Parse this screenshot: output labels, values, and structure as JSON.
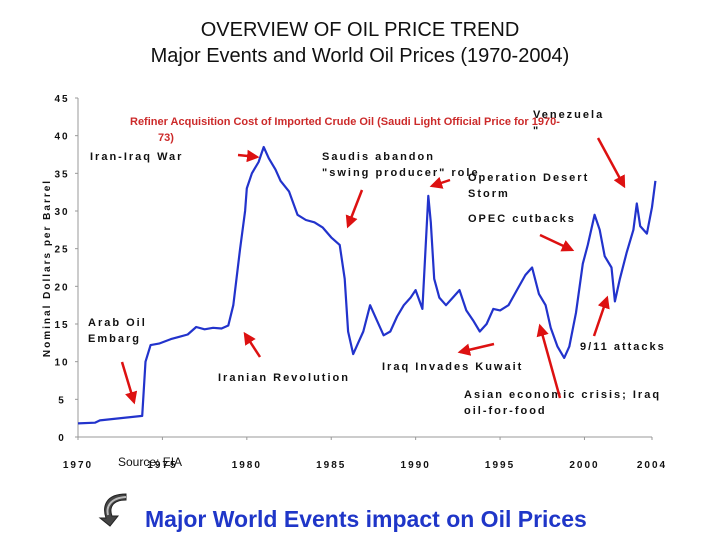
{
  "chart_data": {
    "type": "line",
    "title": "OVERVIEW OF OIL PRICE TREND",
    "subtitle": "Major Events and World Oil Prices (1970-2004)",
    "ylabel": "Nominal Dollars per Barrel",
    "xlabel": "",
    "ylim": [
      0,
      45
    ],
    "xlim": [
      1970,
      2004
    ],
    "yticks": [
      "0",
      "5",
      "10",
      "15",
      "20",
      "25",
      "30",
      "35",
      "40",
      "45"
    ],
    "xticks": [
      "1970",
      "1975",
      "1980",
      "1985",
      "1990",
      "1995",
      "2000",
      "2004"
    ],
    "grid": false,
    "color": "#2233cc",
    "series": [
      {
        "name": "Refiner Acquisition Cost of Imported Crude Oil (Saudi Light Official Price for 1970-73)",
        "x": [
          1970,
          1971.0,
          1971.3,
          1973.8,
          1974.0,
          1974.3,
          1974.8,
          1975.5,
          1976.0,
          1976.5,
          1977.0,
          1977.5,
          1978.0,
          1978.5,
          1978.9,
          1979.2,
          1979.6,
          1979.9,
          1980.0,
          1980.3,
          1980.7,
          1981.0,
          1981.3,
          1981.7,
          1982.0,
          1982.5,
          1983.0,
          1983.5,
          1984.0,
          1984.5,
          1985.0,
          1985.5,
          1985.8,
          1986.0,
          1986.3,
          1986.6,
          1986.9,
          1987.3,
          1987.7,
          1988.1,
          1988.5,
          1988.9,
          1989.3,
          1989.7,
          1990.0,
          1990.4,
          1990.75,
          1990.9,
          1991.1,
          1991.4,
          1991.8,
          1992.2,
          1992.6,
          1993.0,
          1993.4,
          1993.8,
          1994.2,
          1994.6,
          1995.0,
          1995.5,
          1996.0,
          1996.5,
          1996.9,
          1997.3,
          1997.7,
          1998.0,
          1998.4,
          1998.8,
          1999.1,
          1999.5,
          1999.9,
          2000.2,
          2000.6,
          2000.9,
          2001.2,
          2001.6,
          2001.8,
          2002.1,
          2002.5,
          2002.9,
          2003.1,
          2003.3,
          2003.7,
          2004.0,
          2004.2
        ],
        "values": [
          1.8,
          1.9,
          2.2,
          2.8,
          10.0,
          12.2,
          12.4,
          13.0,
          13.3,
          13.6,
          14.6,
          14.3,
          14.5,
          14.4,
          14.8,
          17.5,
          25.0,
          30.0,
          33.0,
          35.0,
          36.5,
          38.5,
          37.0,
          35.5,
          34.0,
          32.6,
          29.5,
          28.8,
          28.5,
          27.8,
          26.5,
          25.5,
          21.0,
          14.0,
          11.0,
          12.5,
          14.0,
          17.5,
          15.5,
          13.5,
          14.0,
          16.0,
          17.5,
          18.5,
          19.5,
          17.0,
          32.0,
          28.5,
          21.0,
          18.5,
          17.5,
          18.5,
          19.5,
          16.8,
          15.5,
          14.0,
          15.0,
          17.0,
          16.8,
          17.5,
          19.5,
          21.5,
          22.5,
          19.0,
          17.5,
          14.5,
          12.0,
          10.5,
          12.0,
          16.5,
          23.0,
          25.5,
          29.5,
          27.5,
          24.0,
          22.5,
          18.0,
          21.0,
          24.5,
          27.5,
          31.0,
          28.0,
          27.0,
          30.5,
          34.0
        ]
      }
    ],
    "annotations": [
      {
        "lines": [
          "Arab Oil",
          "Embarg"
        ]
      },
      {
        "lines": [
          "Iran-Iraq War"
        ]
      },
      {
        "lines": [
          "Iranian Revolution"
        ]
      },
      {
        "lines": [
          "Saudis abandon",
          "\"swing producer\" role"
        ]
      },
      {
        "lines": [
          "Iraq Invades Kuwait"
        ]
      },
      {
        "lines": [
          "Operation Desert",
          "Storm"
        ]
      },
      {
        "lines": [
          "OPEC cutbacks"
        ]
      },
      {
        "lines": [
          "Asian economic crisis; Iraq",
          "oil-for-food"
        ]
      },
      {
        "lines": [
          "9/11 attacks"
        ]
      },
      {
        "lines": [
          "Venezuela",
          "\""
        ]
      }
    ],
    "series_label_lines": [
      "Refiner Acquisition Cost of Imported Crude Oil (Saudi Light Official Price for 1970-",
      "73)"
    ],
    "source": "Source: EIA",
    "arrow_color": "#dd1111"
  },
  "footer": {
    "text": "Major World Events impact on Oil Prices"
  }
}
